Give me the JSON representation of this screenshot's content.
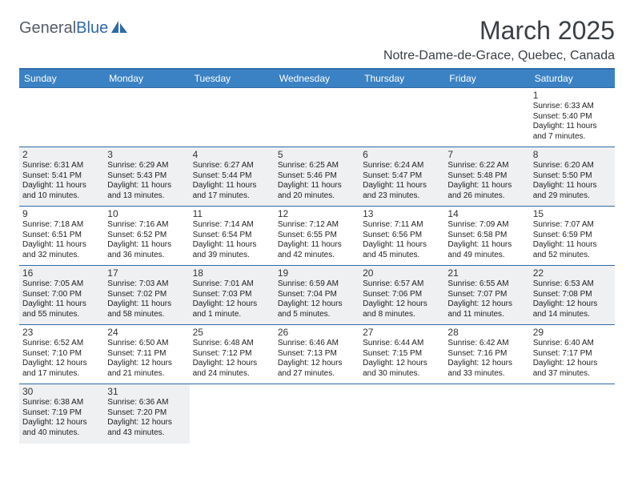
{
  "logo": {
    "text_dark": "General",
    "text_blue": "Blue"
  },
  "colors": {
    "header_bg": "#3b82c4",
    "header_text": "#ffffff",
    "row_border": "#2f6aa8",
    "odd_row_bg": "#eef0f2",
    "even_row_bg": "#ffffff",
    "logo_blue": "#2f6aa8",
    "logo_dark": "#555d66"
  },
  "title": "March 2025",
  "location": "Notre-Dame-de-Grace, Quebec, Canada",
  "day_headers": [
    "Sunday",
    "Monday",
    "Tuesday",
    "Wednesday",
    "Thursday",
    "Friday",
    "Saturday"
  ],
  "weeks": [
    [
      null,
      null,
      null,
      null,
      null,
      null,
      {
        "n": "1",
        "sr": "Sunrise: 6:33 AM",
        "ss": "Sunset: 5:40 PM",
        "d1": "Daylight: 11 hours",
        "d2": "and 7 minutes."
      }
    ],
    [
      {
        "n": "2",
        "sr": "Sunrise: 6:31 AM",
        "ss": "Sunset: 5:41 PM",
        "d1": "Daylight: 11 hours",
        "d2": "and 10 minutes."
      },
      {
        "n": "3",
        "sr": "Sunrise: 6:29 AM",
        "ss": "Sunset: 5:43 PM",
        "d1": "Daylight: 11 hours",
        "d2": "and 13 minutes."
      },
      {
        "n": "4",
        "sr": "Sunrise: 6:27 AM",
        "ss": "Sunset: 5:44 PM",
        "d1": "Daylight: 11 hours",
        "d2": "and 17 minutes."
      },
      {
        "n": "5",
        "sr": "Sunrise: 6:25 AM",
        "ss": "Sunset: 5:46 PM",
        "d1": "Daylight: 11 hours",
        "d2": "and 20 minutes."
      },
      {
        "n": "6",
        "sr": "Sunrise: 6:24 AM",
        "ss": "Sunset: 5:47 PM",
        "d1": "Daylight: 11 hours",
        "d2": "and 23 minutes."
      },
      {
        "n": "7",
        "sr": "Sunrise: 6:22 AM",
        "ss": "Sunset: 5:48 PM",
        "d1": "Daylight: 11 hours",
        "d2": "and 26 minutes."
      },
      {
        "n": "8",
        "sr": "Sunrise: 6:20 AM",
        "ss": "Sunset: 5:50 PM",
        "d1": "Daylight: 11 hours",
        "d2": "and 29 minutes."
      }
    ],
    [
      {
        "n": "9",
        "sr": "Sunrise: 7:18 AM",
        "ss": "Sunset: 6:51 PM",
        "d1": "Daylight: 11 hours",
        "d2": "and 32 minutes."
      },
      {
        "n": "10",
        "sr": "Sunrise: 7:16 AM",
        "ss": "Sunset: 6:52 PM",
        "d1": "Daylight: 11 hours",
        "d2": "and 36 minutes."
      },
      {
        "n": "11",
        "sr": "Sunrise: 7:14 AM",
        "ss": "Sunset: 6:54 PM",
        "d1": "Daylight: 11 hours",
        "d2": "and 39 minutes."
      },
      {
        "n": "12",
        "sr": "Sunrise: 7:12 AM",
        "ss": "Sunset: 6:55 PM",
        "d1": "Daylight: 11 hours",
        "d2": "and 42 minutes."
      },
      {
        "n": "13",
        "sr": "Sunrise: 7:11 AM",
        "ss": "Sunset: 6:56 PM",
        "d1": "Daylight: 11 hours",
        "d2": "and 45 minutes."
      },
      {
        "n": "14",
        "sr": "Sunrise: 7:09 AM",
        "ss": "Sunset: 6:58 PM",
        "d1": "Daylight: 11 hours",
        "d2": "and 49 minutes."
      },
      {
        "n": "15",
        "sr": "Sunrise: 7:07 AM",
        "ss": "Sunset: 6:59 PM",
        "d1": "Daylight: 11 hours",
        "d2": "and 52 minutes."
      }
    ],
    [
      {
        "n": "16",
        "sr": "Sunrise: 7:05 AM",
        "ss": "Sunset: 7:00 PM",
        "d1": "Daylight: 11 hours",
        "d2": "and 55 minutes."
      },
      {
        "n": "17",
        "sr": "Sunrise: 7:03 AM",
        "ss": "Sunset: 7:02 PM",
        "d1": "Daylight: 11 hours",
        "d2": "and 58 minutes."
      },
      {
        "n": "18",
        "sr": "Sunrise: 7:01 AM",
        "ss": "Sunset: 7:03 PM",
        "d1": "Daylight: 12 hours",
        "d2": "and 1 minute."
      },
      {
        "n": "19",
        "sr": "Sunrise: 6:59 AM",
        "ss": "Sunset: 7:04 PM",
        "d1": "Daylight: 12 hours",
        "d2": "and 5 minutes."
      },
      {
        "n": "20",
        "sr": "Sunrise: 6:57 AM",
        "ss": "Sunset: 7:06 PM",
        "d1": "Daylight: 12 hours",
        "d2": "and 8 minutes."
      },
      {
        "n": "21",
        "sr": "Sunrise: 6:55 AM",
        "ss": "Sunset: 7:07 PM",
        "d1": "Daylight: 12 hours",
        "d2": "and 11 minutes."
      },
      {
        "n": "22",
        "sr": "Sunrise: 6:53 AM",
        "ss": "Sunset: 7:08 PM",
        "d1": "Daylight: 12 hours",
        "d2": "and 14 minutes."
      }
    ],
    [
      {
        "n": "23",
        "sr": "Sunrise: 6:52 AM",
        "ss": "Sunset: 7:10 PM",
        "d1": "Daylight: 12 hours",
        "d2": "and 17 minutes."
      },
      {
        "n": "24",
        "sr": "Sunrise: 6:50 AM",
        "ss": "Sunset: 7:11 PM",
        "d1": "Daylight: 12 hours",
        "d2": "and 21 minutes."
      },
      {
        "n": "25",
        "sr": "Sunrise: 6:48 AM",
        "ss": "Sunset: 7:12 PM",
        "d1": "Daylight: 12 hours",
        "d2": "and 24 minutes."
      },
      {
        "n": "26",
        "sr": "Sunrise: 6:46 AM",
        "ss": "Sunset: 7:13 PM",
        "d1": "Daylight: 12 hours",
        "d2": "and 27 minutes."
      },
      {
        "n": "27",
        "sr": "Sunrise: 6:44 AM",
        "ss": "Sunset: 7:15 PM",
        "d1": "Daylight: 12 hours",
        "d2": "and 30 minutes."
      },
      {
        "n": "28",
        "sr": "Sunrise: 6:42 AM",
        "ss": "Sunset: 7:16 PM",
        "d1": "Daylight: 12 hours",
        "d2": "and 33 minutes."
      },
      {
        "n": "29",
        "sr": "Sunrise: 6:40 AM",
        "ss": "Sunset: 7:17 PM",
        "d1": "Daylight: 12 hours",
        "d2": "and 37 minutes."
      }
    ],
    [
      {
        "n": "30",
        "sr": "Sunrise: 6:38 AM",
        "ss": "Sunset: 7:19 PM",
        "d1": "Daylight: 12 hours",
        "d2": "and 40 minutes."
      },
      {
        "n": "31",
        "sr": "Sunrise: 6:36 AM",
        "ss": "Sunset: 7:20 PM",
        "d1": "Daylight: 12 hours",
        "d2": "and 43 minutes."
      },
      null,
      null,
      null,
      null,
      null
    ]
  ]
}
